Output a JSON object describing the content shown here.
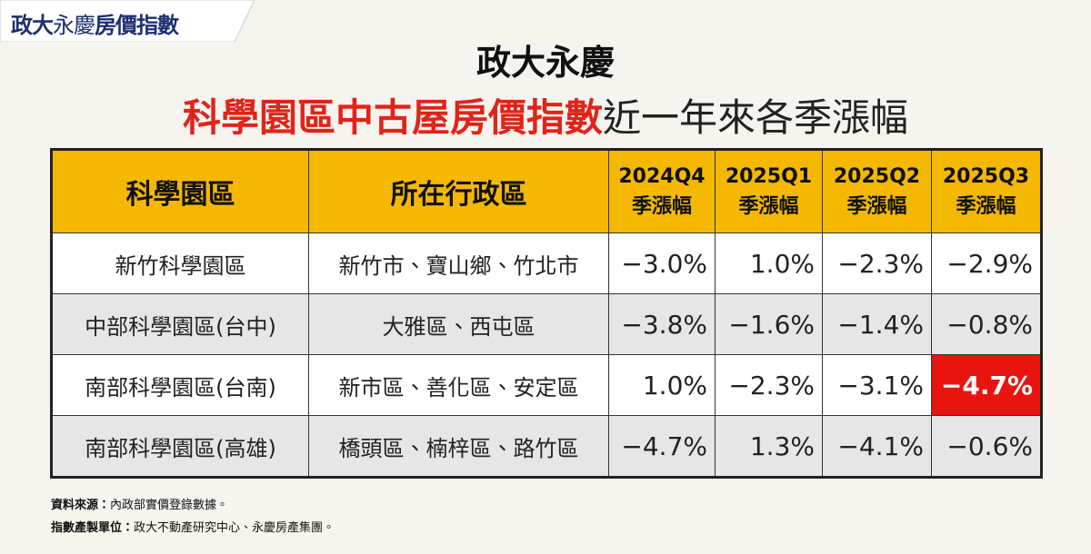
{
  "brand": {
    "part1": "政大",
    "part2": "永慶",
    "part3": "房價指數"
  },
  "title": {
    "line1": "政大永慶",
    "highlight": "科學園區中古屋房價指數",
    "rest": "近一年來各季漲幅"
  },
  "table": {
    "header": [
      {
        "text": "科學園區"
      },
      {
        "text": "所在行政區"
      },
      {
        "period": "2024Q4",
        "text": "季漲幅"
      },
      {
        "period": "2025Q1",
        "text": "季漲幅"
      },
      {
        "period": "2025Q2",
        "text": "季漲幅"
      },
      {
        "period": "2025Q3",
        "text": "季漲幅"
      }
    ],
    "rows": [
      [
        "新竹科學園區",
        "新竹市、寶山鄉、竹北市",
        "−3.0%",
        "1.0%",
        "−2.3%",
        "−2.9%"
      ],
      [
        "中部科學園區(台中)",
        "大雅區、西屯區",
        "−3.8%",
        "−1.6%",
        "−1.4%",
        "−0.8%"
      ],
      [
        "南部科學園區(台南)",
        "新市區、善化區、安定區",
        "1.0%",
        "−2.3%",
        "−3.1%",
        "−4.7%"
      ],
      [
        "南部科學園區(高雄)",
        "橋頭區、楠梓區、路竹區",
        "−4.7%",
        "1.3%",
        "−4.1%",
        "−0.6%"
      ]
    ]
  },
  "footer": [
    {
      "label": "資料來源：",
      "text": "內政部實價登錄數據。"
    },
    {
      "label": "指數產製單位：",
      "text": "政大不動產研究中心、永慶房產集團。"
    }
  ]
}
